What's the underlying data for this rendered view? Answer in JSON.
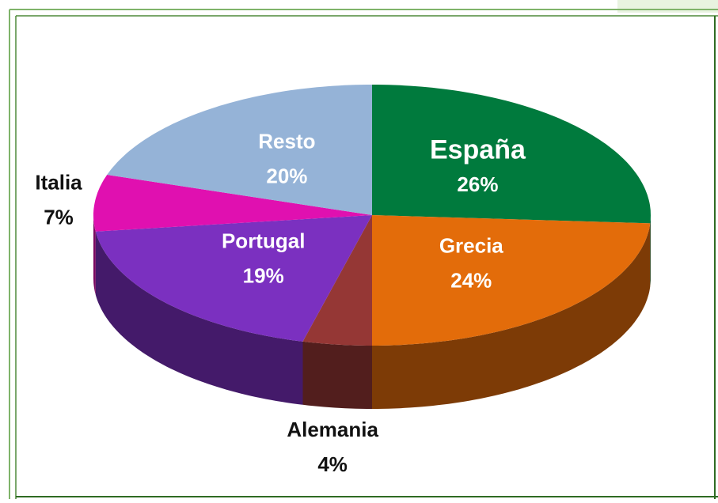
{
  "chart_data": {
    "type": "pie",
    "categories": [
      "España",
      "Grecia",
      "Alemania",
      "Portugal",
      "Italia",
      "Resto"
    ],
    "values": [
      26,
      24,
      4,
      19,
      7,
      20
    ],
    "value_labels": [
      "26%",
      "24%",
      "4%",
      "19%",
      "7%",
      "20%"
    ],
    "colors": [
      "#007a3d",
      "#e36c0a",
      "#953735",
      "#7b30c0",
      "#e010b0",
      "#95b3d7"
    ]
  }
}
